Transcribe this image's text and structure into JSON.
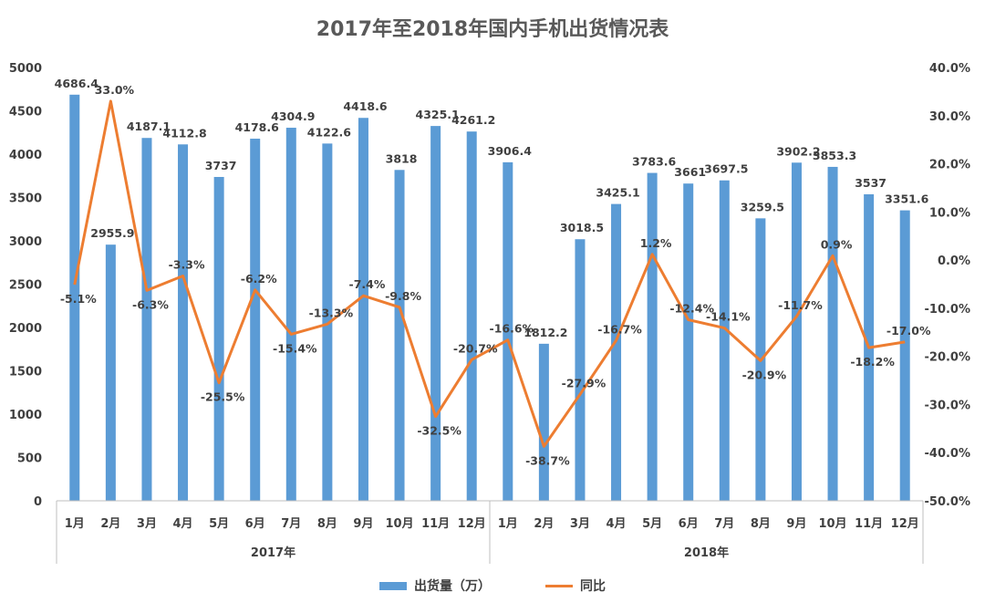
{
  "chart_data": {
    "type": "bar",
    "title": "2017年至2018年国内手机出货情况表",
    "categories": [
      "1月",
      "2月",
      "3月",
      "4月",
      "5月",
      "6月",
      "7月",
      "8月",
      "9月",
      "10月",
      "11月",
      "12月",
      "1月",
      "2月",
      "3月",
      "4月",
      "5月",
      "6月",
      "7月",
      "8月",
      "9月",
      "10月",
      "11月",
      "12月"
    ],
    "groups": [
      {
        "label": "2017年",
        "start": 0,
        "end": 11
      },
      {
        "label": "2018年",
        "start": 12,
        "end": 23
      }
    ],
    "series": [
      {
        "name": "出货量（万）",
        "type": "bar",
        "axis": "left",
        "color": "#5B9BD5",
        "values": [
          4686.4,
          2955.9,
          4187.1,
          4112.8,
          3737,
          4178.6,
          4304.9,
          4122.6,
          4418.6,
          3818,
          4325.1,
          4261.2,
          3906.4,
          1812.2,
          3018.5,
          3425.1,
          3783.6,
          3661,
          3697.5,
          3259.5,
          3902.2,
          3853.3,
          3537,
          3351.6
        ],
        "labels": [
          "4686.4",
          "2955.9",
          "4187.1",
          "4112.8",
          "3737",
          "4178.6",
          "4304.9",
          "4122.6",
          "4418.6",
          "3818",
          "4325.1",
          "4261.2",
          "3906.4",
          "1812.2",
          "3018.5",
          "3425.1",
          "3783.6",
          "3661",
          "3697.5",
          "3259.5",
          "3902.2",
          "3853.3",
          "3537",
          "3351.6"
        ]
      },
      {
        "name": "同比",
        "type": "line",
        "axis": "right",
        "color": "#ED7D31",
        "values": [
          -5.1,
          33.0,
          -6.3,
          -3.3,
          -25.5,
          -6.2,
          -15.4,
          -13.3,
          -7.4,
          -9.8,
          -32.5,
          -20.7,
          -16.6,
          -38.7,
          -27.9,
          -16.7,
          1.2,
          -12.4,
          -14.1,
          -20.9,
          -11.7,
          0.9,
          -18.2,
          -17.0
        ],
        "labels": [
          "-5.1%",
          "33.0%",
          "-6.3%",
          "-3.3%",
          "-25.5%",
          "-6.2%",
          "-15.4%",
          "-13.3%",
          "-7.4%",
          "-9.8%",
          "-32.5%",
          "-20.7%",
          "-16.6%",
          "-38.7%",
          "-27.9%",
          "-16.7%",
          "1.2%",
          "-12.4%",
          "-14.1%",
          "-20.9%",
          "-11.7%",
          "0.9%",
          "-18.2%",
          "-17.0%"
        ]
      }
    ],
    "y_left": {
      "min": 0,
      "max": 5000,
      "step": 500,
      "tick_labels": [
        "0",
        "500",
        "1000",
        "1500",
        "2000",
        "2500",
        "3000",
        "3500",
        "4000",
        "4500",
        "5000"
      ]
    },
    "y_right": {
      "min": -50,
      "max": 40,
      "step": 10,
      "tick_labels": [
        "-50.0%",
        "-40.0%",
        "-30.0%",
        "-20.0%",
        "-10.0%",
        "0.0%",
        "10.0%",
        "20.0%",
        "30.0%",
        "40.0%"
      ]
    },
    "grid": false,
    "legend": "bottom"
  }
}
